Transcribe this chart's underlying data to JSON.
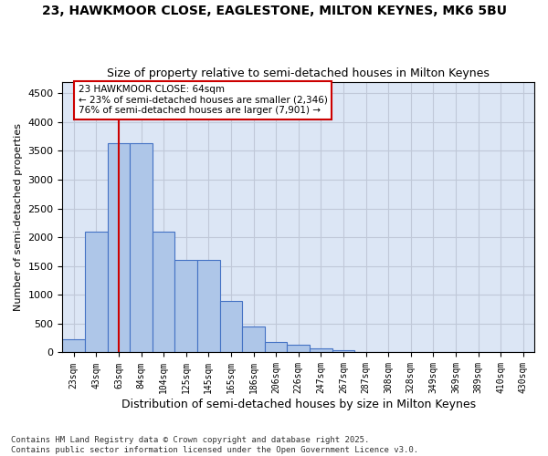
{
  "title1": "23, HAWKMOOR CLOSE, EAGLESTONE, MILTON KEYNES, MK6 5BU",
  "title2": "Size of property relative to semi-detached houses in Milton Keynes",
  "xlabel": "Distribution of semi-detached houses by size in Milton Keynes",
  "ylabel": "Number of semi-detached properties",
  "footnote": "Contains HM Land Registry data © Crown copyright and database right 2025.\nContains public sector information licensed under the Open Government Licence v3.0.",
  "bins": [
    "23sqm",
    "43sqm",
    "63sqm",
    "84sqm",
    "104sqm",
    "125sqm",
    "145sqm",
    "165sqm",
    "186sqm",
    "206sqm",
    "226sqm",
    "247sqm",
    "267sqm",
    "287sqm",
    "308sqm",
    "328sqm",
    "349sqm",
    "369sqm",
    "389sqm",
    "410sqm",
    "430sqm"
  ],
  "bar_values": [
    230,
    2090,
    3640,
    3640,
    2090,
    1610,
    1610,
    900,
    450,
    180,
    130,
    70,
    40,
    10,
    5,
    2,
    1,
    1,
    0,
    0,
    0
  ],
  "bar_color": "#aec6e8",
  "bar_edge_color": "#4472c4",
  "grid_color": "#c0c8d8",
  "bg_color": "#dce6f5",
  "vline_x": 2,
  "vline_color": "#cc0000",
  "annotation_title": "23 HAWKMOOR CLOSE: 64sqm",
  "annotation_line1": "← 23% of semi-detached houses are smaller (2,346)",
  "annotation_line2": "76% of semi-detached houses are larger (7,901) →",
  "annotation_box_color": "#cc0000",
  "ylim": [
    0,
    4700
  ],
  "yticks": [
    0,
    500,
    1000,
    1500,
    2000,
    2500,
    3000,
    3500,
    4000,
    4500
  ]
}
